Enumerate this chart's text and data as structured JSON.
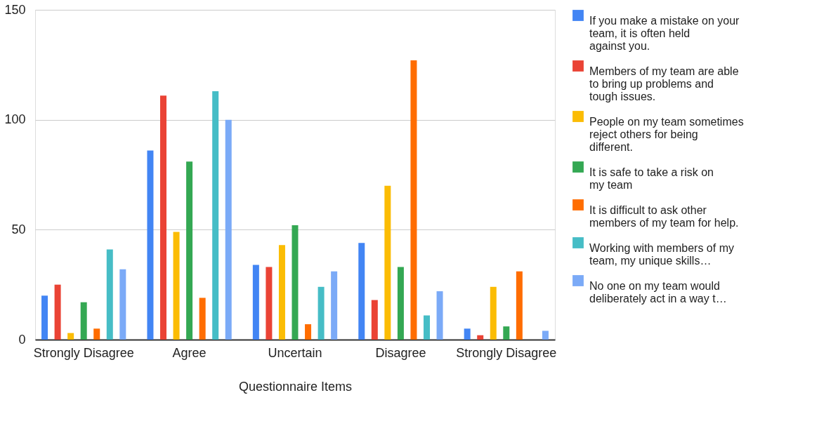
{
  "chart_data": {
    "type": "bar",
    "xlabel": "Questionnaire Items",
    "categories": [
      "Strongly Disagree",
      "Agree",
      "Uncertain",
      "Disagree",
      "Strongly Disagree"
    ],
    "ylim": [
      0,
      150
    ],
    "yticks": [
      0,
      50,
      100,
      150
    ],
    "grid": "y",
    "legend": "right",
    "series": [
      {
        "name": "If you make a mistake on your team, it is often held against you.",
        "color": "#4285f4",
        "values": [
          20,
          86,
          34,
          44,
          5
        ]
      },
      {
        "name": "Members of my team are able to bring up problems and tough issues.",
        "color": "#ea4335",
        "values": [
          25,
          111,
          33,
          18,
          2
        ]
      },
      {
        "name": "People on my team sometimes reject others for being different.",
        "color": "#fbbc04",
        "values": [
          3,
          49,
          43,
          70,
          24
        ]
      },
      {
        "name": "It is safe to take a risk on my team",
        "color": "#34a853",
        "values": [
          17,
          81,
          52,
          33,
          6
        ]
      },
      {
        "name": "It is difficult to ask other members of my team for help.",
        "color": "#ff6d01",
        "values": [
          5,
          19,
          7,
          127,
          31
        ]
      },
      {
        "name": "Working with members of my team, my unique skills…",
        "color": "#46bdc6",
        "values": [
          41,
          113,
          24,
          11,
          0
        ]
      },
      {
        "name": "No one on my team would deliberately act in a way t…",
        "color": "#7baaf7",
        "values": [
          32,
          100,
          31,
          22,
          4
        ]
      }
    ]
  }
}
